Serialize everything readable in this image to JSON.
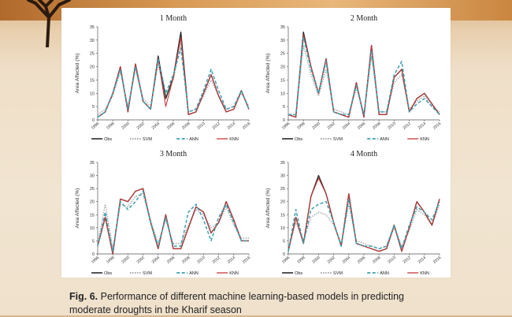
{
  "caption": {
    "label": "Fig. 6.",
    "text": "Performance of different machine learning-based models in predicting moderate droughts in the Kharif season"
  },
  "colors": {
    "Obs": "#2a2a2a",
    "SVM": "#9a9a9a",
    "ANN": "#3aa0b0",
    "KNN": "#c63a3a"
  },
  "chart_data": [
    {
      "type": "line",
      "title": "1 Month",
      "ylabel": "Area Affected (%)",
      "ylim": [
        0,
        35
      ],
      "yticks": [
        0,
        5,
        10,
        15,
        20,
        25,
        30,
        35
      ],
      "xticks": [
        "1996",
        "1998",
        "2000",
        "2002",
        "2004",
        "2006",
        "2008",
        "2010",
        "2012",
        "2014",
        "2016"
      ],
      "x": [
        1996,
        1997,
        1998,
        1999,
        2000,
        2001,
        2002,
        2003,
        2004,
        2005,
        2006,
        2007,
        2008,
        2009,
        2010,
        2011,
        2012,
        2013,
        2014,
        2015,
        2016
      ],
      "series": [
        {
          "name": "Obs",
          "values": [
            1,
            3,
            10,
            20,
            3,
            21,
            7,
            4,
            24,
            8,
            16,
            33,
            2,
            3,
            10,
            17,
            9,
            3,
            4,
            11,
            4
          ]
        },
        {
          "name": "SVM",
          "values": [
            2,
            4,
            9,
            18,
            5,
            19,
            8,
            5,
            21,
            9,
            15,
            29,
            3,
            4,
            9,
            15,
            9,
            4,
            5,
            10,
            5
          ]
        },
        {
          "name": "ANN",
          "values": [
            1,
            3,
            10,
            19,
            4,
            20,
            7,
            4,
            23,
            10,
            17,
            27,
            3,
            4,
            11,
            19,
            11,
            4,
            5,
            11,
            4
          ]
        },
        {
          "name": "KNN",
          "values": [
            1,
            3,
            10,
            20,
            3,
            21,
            7,
            4,
            23,
            5,
            16,
            31,
            2,
            3,
            10,
            17,
            9,
            3,
            4,
            11,
            4
          ]
        }
      ]
    },
    {
      "type": "line",
      "title": "2 Month",
      "ylabel": "Area Affected (%)",
      "ylim": [
        0,
        35
      ],
      "yticks": [
        0,
        5,
        10,
        15,
        20,
        25,
        30,
        35
      ],
      "xticks": [
        "1996",
        "1998",
        "2000",
        "2002",
        "2004",
        "2006",
        "2008",
        "2010",
        "2012",
        "2014",
        "2016"
      ],
      "x": [
        1996,
        1997,
        1998,
        1999,
        2000,
        2001,
        2002,
        2003,
        2004,
        2005,
        2006,
        2007,
        2008,
        2009,
        2010,
        2011,
        2012,
        2013,
        2014,
        2015,
        2016
      ],
      "series": [
        {
          "name": "Obs",
          "values": [
            2,
            1,
            33,
            20,
            10,
            23,
            3,
            2,
            1,
            14,
            1,
            28,
            2,
            2,
            16,
            19,
            3,
            8,
            10,
            6,
            2
          ]
        },
        {
          "name": "SVM",
          "values": [
            2,
            2,
            28,
            17,
            9,
            19,
            4,
            3,
            2,
            12,
            2,
            24,
            3,
            3,
            14,
            17,
            4,
            7,
            9,
            5,
            3
          ]
        },
        {
          "name": "ANN",
          "values": [
            2,
            2,
            31,
            19,
            10,
            22,
            3,
            2,
            2,
            13,
            2,
            26,
            3,
            3,
            17,
            22,
            3,
            6,
            8,
            5,
            2
          ]
        },
        {
          "name": "KNN",
          "values": [
            2,
            1,
            32,
            20,
            10,
            23,
            3,
            2,
            1,
            14,
            1,
            28,
            2,
            2,
            16,
            19,
            3,
            8,
            10,
            6,
            2
          ]
        }
      ]
    },
    {
      "type": "line",
      "title": "3 Month",
      "ylabel": "Area Affected (%)",
      "ylim": [
        0,
        35
      ],
      "yticks": [
        0,
        5,
        10,
        15,
        20,
        25,
        30,
        35
      ],
      "xticks": [
        "1996",
        "1998",
        "2000",
        "2002",
        "2004",
        "2006",
        "2008",
        "2010",
        "2012",
        "2014",
        "2016"
      ],
      "x": [
        1996,
        1997,
        1998,
        1999,
        2000,
        2001,
        2002,
        2003,
        2004,
        2005,
        2006,
        2007,
        2008,
        2009,
        2010,
        2011,
        2012,
        2013,
        2014,
        2015,
        2016
      ],
      "series": [
        {
          "name": "Obs",
          "values": [
            3,
            14,
            0,
            21,
            20,
            24,
            25,
            12,
            2,
            15,
            2,
            2,
            10,
            18,
            16,
            8,
            12,
            20,
            13,
            5,
            5
          ]
        },
        {
          "name": "SVM",
          "values": [
            4,
            19,
            2,
            19,
            18,
            22,
            23,
            13,
            4,
            13,
            4,
            4,
            11,
            17,
            15,
            10,
            12,
            18,
            11,
            6,
            6
          ]
        },
        {
          "name": "ANN",
          "values": [
            3,
            16,
            1,
            20,
            17,
            20,
            24,
            12,
            3,
            14,
            3,
            3,
            16,
            19,
            13,
            5,
            14,
            19,
            12,
            5,
            5
          ]
        },
        {
          "name": "KNN",
          "values": [
            3,
            14,
            0,
            21,
            20,
            24,
            25,
            12,
            2,
            15,
            2,
            2,
            10,
            18,
            16,
            8,
            12,
            20,
            13,
            5,
            5
          ]
        }
      ]
    },
    {
      "type": "line",
      "title": "4 Month",
      "ylabel": "Area Affected (%)",
      "ylim": [
        0,
        35
      ],
      "yticks": [
        0,
        5,
        10,
        15,
        20,
        25,
        30,
        35
      ],
      "xticks": [
        "1996",
        "1998",
        "2000",
        "2002",
        "2004",
        "2006",
        "2008",
        "2010",
        "2012",
        "2014",
        "2016"
      ],
      "x": [
        1996,
        1997,
        1998,
        1999,
        2000,
        2001,
        2002,
        2003,
        2004,
        2005,
        2006,
        2007,
        2008,
        2009,
        2010,
        2011,
        2012,
        2013,
        2014,
        2015,
        2016
      ],
      "series": [
        {
          "name": "Obs",
          "values": [
            1,
            14,
            4,
            22,
            30,
            23,
            12,
            3,
            23,
            4,
            3,
            2,
            1,
            2,
            11,
            1,
            10,
            20,
            16,
            11,
            21
          ]
        },
        {
          "name": "SVM",
          "values": [
            2,
            12,
            5,
            14,
            16,
            15,
            11,
            4,
            19,
            5,
            4,
            3,
            2,
            3,
            10,
            3,
            9,
            17,
            15,
            11,
            19
          ]
        },
        {
          "name": "ANN",
          "values": [
            1,
            17,
            4,
            17,
            19,
            20,
            12,
            3,
            21,
            4,
            3,
            3,
            2,
            3,
            11,
            2,
            11,
            18,
            16,
            13,
            20
          ]
        },
        {
          "name": "KNN",
          "values": [
            1,
            14,
            4,
            22,
            29,
            23,
            12,
            3,
            23,
            4,
            3,
            2,
            1,
            2,
            11,
            1,
            10,
            20,
            16,
            11,
            21
          ]
        }
      ]
    }
  ],
  "legend": [
    {
      "name": "Obs",
      "key": "Obs"
    },
    {
      "name": "SVM",
      "key": "SVM"
    },
    {
      "name": "ANN",
      "key": "ANN"
    },
    {
      "name": "KNN",
      "key": "KNN"
    }
  ]
}
